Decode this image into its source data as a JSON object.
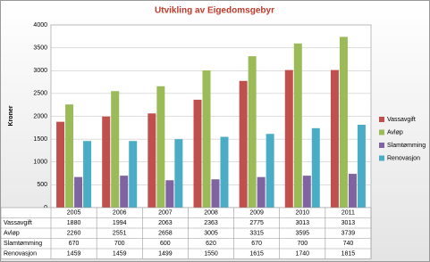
{
  "chart_data": {
    "type": "bar",
    "title": "Utvikling av Eigedomsgebyr",
    "y_label": "Kroner",
    "categories": [
      "2005",
      "2006",
      "2007",
      "2008",
      "2009",
      "2010",
      "2011"
    ],
    "series": [
      {
        "name": "Vassavgift",
        "color": "#c0504d",
        "values": [
          1880,
          1994,
          2063,
          2363,
          2775,
          3013,
          3013
        ]
      },
      {
        "name": "Avløp",
        "color": "#9bbb59",
        "values": [
          2260,
          2551,
          2658,
          3005,
          3315,
          3595,
          3739
        ]
      },
      {
        "name": "Slamtømming",
        "color": "#8064a2",
        "values": [
          670,
          700,
          600,
          620,
          670,
          700,
          740
        ]
      },
      {
        "name": "Renovasjon",
        "color": "#4bacc6",
        "values": [
          1459,
          1459,
          1499,
          1550,
          1615,
          1740,
          1815
        ]
      }
    ],
    "ylim": [
      0,
      4000
    ],
    "yticks": [
      0,
      500,
      1000,
      1500,
      2000,
      2500,
      3000,
      3500,
      4000
    ],
    "grid": true,
    "legend": "right"
  }
}
